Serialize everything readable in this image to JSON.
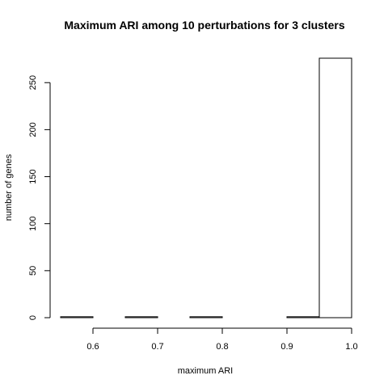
{
  "chart_data": {
    "type": "bar",
    "title": "Maximum ARI among 10 perturbations for 3 clusters",
    "xlabel": "maximum ARI",
    "ylabel": "number of genes",
    "bins": [
      {
        "start": 0.55,
        "end": 0.6,
        "count": 1
      },
      {
        "start": 0.6,
        "end": 0.65,
        "count": 0
      },
      {
        "start": 0.65,
        "end": 0.7,
        "count": 1
      },
      {
        "start": 0.7,
        "end": 0.75,
        "count": 0
      },
      {
        "start": 0.75,
        "end": 0.8,
        "count": 1
      },
      {
        "start": 0.8,
        "end": 0.85,
        "count": 0
      },
      {
        "start": 0.85,
        "end": 0.9,
        "count": 0
      },
      {
        "start": 0.9,
        "end": 0.95,
        "count": 1
      },
      {
        "start": 0.95,
        "end": 1.0,
        "count": 276
      }
    ],
    "xlim": [
      0.55,
      1.0
    ],
    "ylim": [
      0,
      276
    ],
    "xticks": [
      "0.6",
      "0.7",
      "0.8",
      "0.9",
      "1.0"
    ],
    "yticks": [
      "0",
      "50",
      "100",
      "150",
      "200",
      "250"
    ],
    "grid": false,
    "legend": "none"
  }
}
